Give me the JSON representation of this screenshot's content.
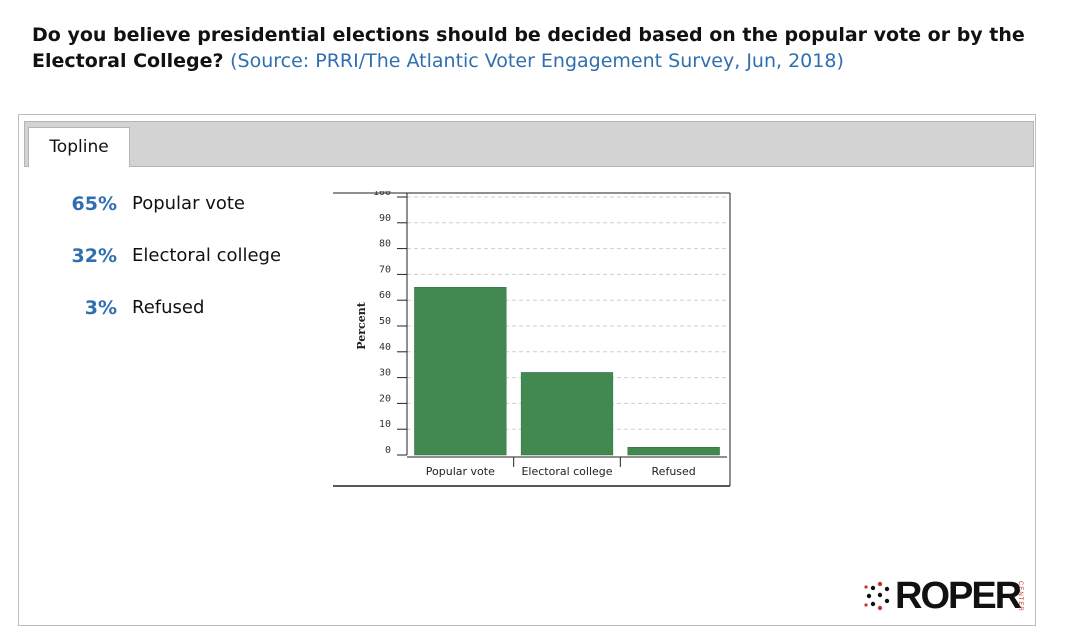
{
  "question": {
    "text": "Do you believe presidential elections should be decided based on the popular vote or by the Electoral College?",
    "source": "(Source: PRRI/The Atlantic Voter Engagement Survey, Jun, 2018)"
  },
  "tabs": [
    {
      "label": "Topline"
    }
  ],
  "topline": [
    {
      "pct": "65%",
      "label": "Popular vote"
    },
    {
      "pct": "32%",
      "label": "Electoral college"
    },
    {
      "pct": "3%",
      "label": "Refused"
    }
  ],
  "logo": {
    "word": "ROPER",
    "sub": "CENTER"
  },
  "colors": {
    "bar": "#418951",
    "accent": "#2f6fb0"
  },
  "chart_data": {
    "type": "bar",
    "categories": [
      "Popular vote",
      "Electoral college",
      "Refused"
    ],
    "values": [
      65,
      32,
      3
    ],
    "ylabel": "Percent",
    "xlabel": "",
    "ylim": [
      0,
      100
    ],
    "yticks": [
      0,
      10,
      20,
      30,
      40,
      50,
      60,
      70,
      80,
      90,
      100
    ],
    "grid": true
  }
}
